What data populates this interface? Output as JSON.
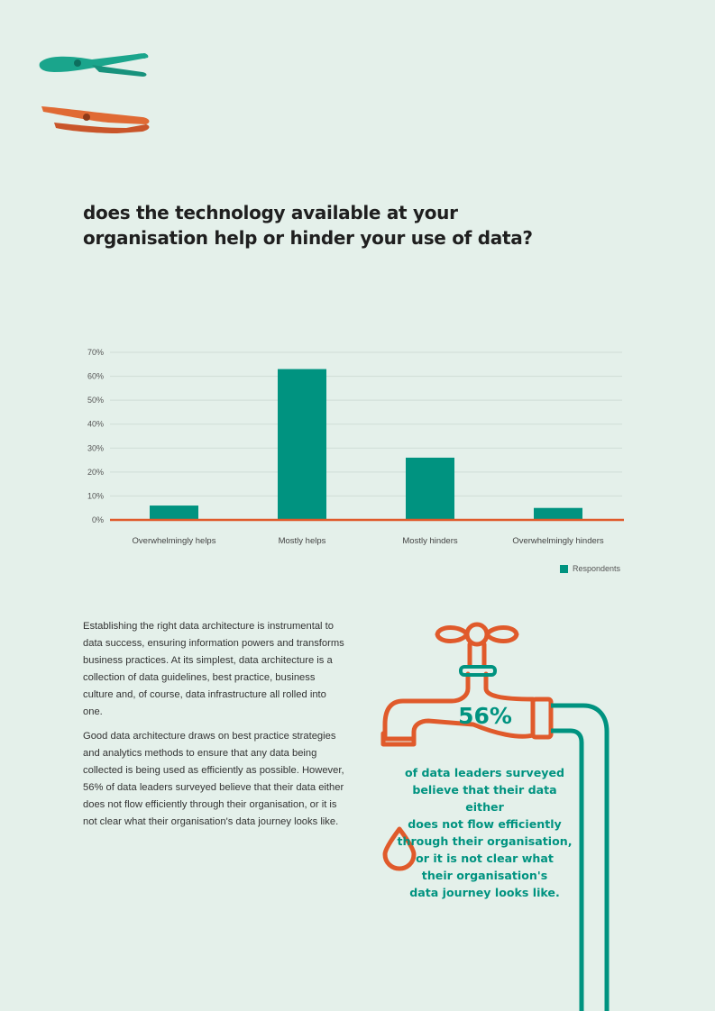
{
  "question": "does the technology available at your organisation help or hinder your use of data?",
  "colors": {
    "teal": "#009380",
    "orange": "#e05a2b",
    "background": "#e4f0ea"
  },
  "icons": [
    "pliers-teal-icon",
    "pliers-orange-icon",
    "tap-icon",
    "water-drop-icon"
  ],
  "chart_data": {
    "type": "bar",
    "title": "",
    "xlabel": "",
    "ylabel": "",
    "categories": [
      "Overwhelmingly helps",
      "Mostly helps",
      "Mostly hinders",
      "Overwhelmingly hinders"
    ],
    "series": [
      {
        "name": "Respondents",
        "values": [
          6,
          63,
          26,
          5
        ]
      }
    ],
    "ylim": [
      0,
      70
    ],
    "yticks": [
      "0%",
      "10%",
      "20%",
      "30%",
      "40%",
      "50%",
      "60%",
      "70%"
    ],
    "grid": true,
    "legend_position": "bottom-right"
  },
  "body": {
    "paragraphs": [
      "Establishing the right data architecture is instrumental to data success, ensuring information powers and transforms business practices. At its simplest, data architecture is a collection of data guidelines, best practice, business culture and, of course, data infrastructure all rolled into one.",
      "Good data architecture draws on best practice strategies and analytics methods to ensure that any data being collected is being used as efficiently as possible. However, 56% of data leaders surveyed believe that their data either does not flow efficiently through their organisation, or it is not clear what their organisation's data journey looks like."
    ]
  },
  "stat": {
    "value": "56%",
    "lines": [
      "of data leaders surveyed",
      "believe that their data either",
      "does not flow efficiently",
      "through their organisation,",
      "or it is not clear what",
      "their organisation's",
      "data journey looks like."
    ]
  }
}
